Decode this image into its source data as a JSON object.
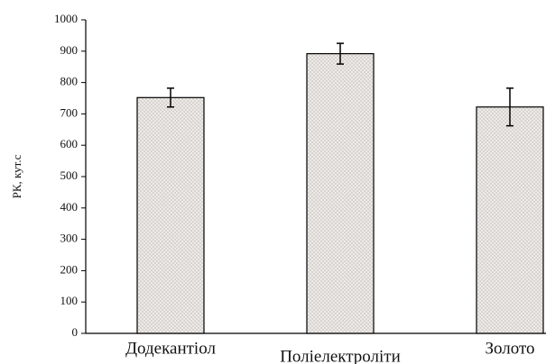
{
  "chart_data": {
    "type": "bar",
    "y_label": "РК, кут.с",
    "categories": [
      "Додекантіол",
      "Поліелектроліти",
      "Золото"
    ],
    "values": [
      752,
      892,
      722
    ],
    "errors": [
      30,
      33,
      60
    ],
    "color": "#e4e0dc",
    "ylim": [
      0,
      1000
    ],
    "yticks": [
      0,
      100,
      200,
      300,
      400,
      500,
      600,
      700,
      800,
      900,
      1000
    ]
  }
}
